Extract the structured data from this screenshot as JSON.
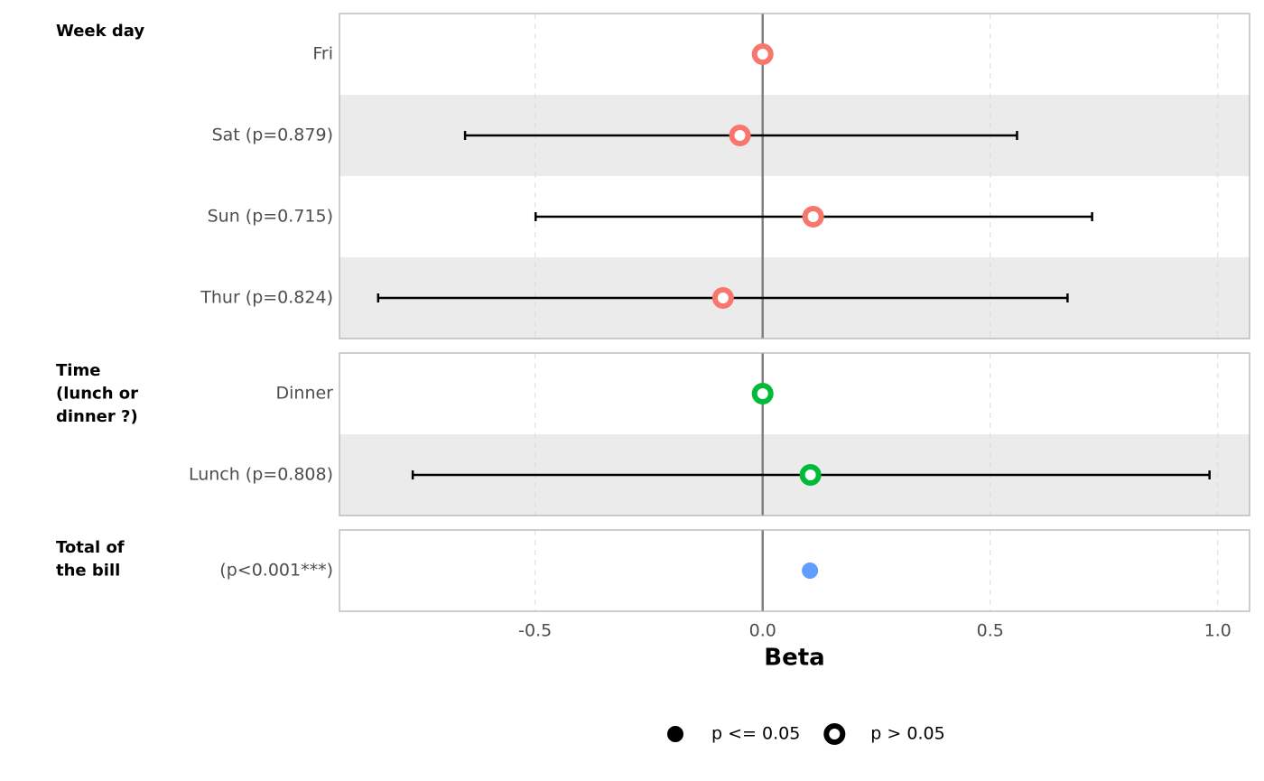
{
  "chart_data": {
    "type": "forest",
    "x_label": "Beta",
    "xlim": [
      -0.93,
      1.07
    ],
    "xticks": [
      -0.5,
      {
        "value": 0,
        "label": "0.0"
      },
      0.5,
      {
        "value": 1,
        "label": "1.0"
      }
    ],
    "grid": true,
    "groups": [
      {
        "label": [
          "Week day"
        ],
        "color": "#f8766d",
        "rows": [
          {
            "label": "Fri",
            "estimate": 0,
            "ci": null,
            "filled": false
          },
          {
            "label": "Sat (p=0.879)",
            "estimate": -0.05,
            "ci": [
              -0.654,
              0.559
            ],
            "filled": false
          },
          {
            "label": "Sun (p=0.715)",
            "estimate": 0.111,
            "ci": [
              -0.499,
              0.724
            ],
            "filled": false
          },
          {
            "label": "Thur (p=0.824)",
            "estimate": -0.087,
            "ci": [
              -0.845,
              0.67
            ],
            "filled": false
          }
        ]
      },
      {
        "label": [
          "Time",
          "(lunch or",
          "dinner ?)"
        ],
        "color": "#00ba38",
        "rows": [
          {
            "label": "Dinner",
            "estimate": 0,
            "ci": null,
            "filled": false
          },
          {
            "label": "Lunch (p=0.808)",
            "estimate": 0.105,
            "ci": [
              -0.769,
              0.982
            ],
            "filled": false
          }
        ]
      },
      {
        "label": [
          "Total of",
          "the bill"
        ],
        "color": "#619cff",
        "rows": [
          {
            "label": "(p<0.001***)",
            "estimate": 0.104,
            "ci": null,
            "filled": true
          }
        ]
      }
    ],
    "legend": [
      {
        "label": "p <= 0.05",
        "filled": true
      },
      {
        "label": "p > 0.05",
        "filled": false
      }
    ]
  }
}
